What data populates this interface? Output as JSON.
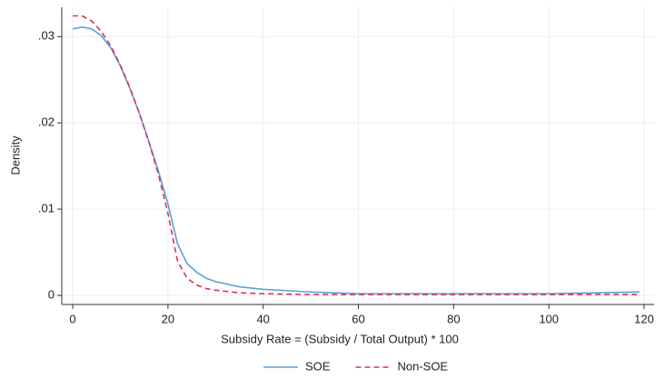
{
  "chart_data": {
    "type": "line",
    "x_label": "Subsidy Rate = (Subsidy / Total Output) * 100",
    "y_label": "Density",
    "x": [
      0,
      2,
      4,
      6,
      8,
      10,
      12,
      14,
      16,
      18,
      20,
      22,
      24,
      26,
      28,
      30,
      35,
      40,
      50,
      60,
      70,
      80,
      90,
      100,
      110,
      119
    ],
    "series": [
      {
        "name": "SOE",
        "color": "#5b9fd6",
        "dash": false,
        "values": [
          0.0309,
          0.0311,
          0.0309,
          0.0301,
          0.0287,
          0.0266,
          0.024,
          0.0211,
          0.0178,
          0.0144,
          0.0106,
          0.006,
          0.0037,
          0.0027,
          0.002,
          0.0016,
          0.001,
          0.0007,
          0.0004,
          0.0002,
          0.0002,
          0.0002,
          0.0002,
          0.0002,
          0.0003,
          0.0004
        ]
      },
      {
        "name": "Non-SOE",
        "color": "#d6335b",
        "dash": true,
        "values": [
          0.0324,
          0.0324,
          0.0318,
          0.0306,
          0.0289,
          0.0267,
          0.0241,
          0.0211,
          0.0178,
          0.014,
          0.0095,
          0.004,
          0.002,
          0.0012,
          0.0008,
          0.0006,
          0.0003,
          0.0002,
          0.0001,
          0.0001,
          0.0001,
          0.0001,
          0.0001,
          0.0001,
          0.0001,
          0.0001
        ]
      }
    ],
    "xlim": [
      -2.3,
      122.1
    ],
    "ylim": [
      -0.00105,
      0.0334
    ],
    "xticks": [
      0,
      20,
      40,
      60,
      80,
      100,
      120
    ],
    "yticks": [
      0,
      {
        "value": 0.01,
        "label": ".01"
      },
      {
        "value": 0.02,
        "label": ".02"
      },
      {
        "value": 0.03,
        "label": ".03"
      }
    ],
    "grid": true,
    "legend": "bottom"
  }
}
